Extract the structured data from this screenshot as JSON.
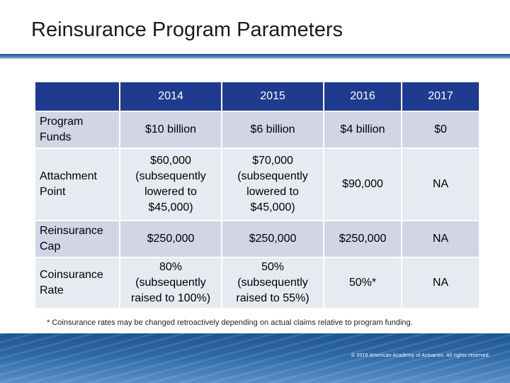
{
  "slide": {
    "title": "Reinsurance Program Parameters"
  },
  "table": {
    "corner": "",
    "years": [
      "2014",
      "2015",
      "2016",
      "2017"
    ],
    "rows": [
      {
        "label": "Program Funds",
        "values": [
          "$10 billion",
          "$6 billion",
          "$4 billion",
          "$0"
        ]
      },
      {
        "label": "Attachment Point",
        "values": [
          "$60,000 (subsequently lowered to $45,000)",
          "$70,000 (subsequently lowered to $45,000)",
          "$90,000",
          "NA"
        ]
      },
      {
        "label": "Reinsurance Cap",
        "values": [
          "$250,000",
          "$250,000",
          "$250,000",
          "NA"
        ]
      },
      {
        "label": "Coinsurance Rate",
        "values": [
          "80% (subsequently raised to 100%)",
          "50% (subsequently raised to 55%)",
          "50%*",
          "NA"
        ]
      }
    ]
  },
  "footnote": "* Coinsurance rates may be changed retroactively depending on actual claims relative to program funding.",
  "footer": {
    "copyright": "© 2016 American Academy of Actuaries. All rights reserved."
  },
  "colors": {
    "header_fill": "#1f3b8f",
    "row_band_a": "#d1d5e6",
    "row_band_b": "#e8eaf2",
    "accent_blue": "#1f5591"
  }
}
